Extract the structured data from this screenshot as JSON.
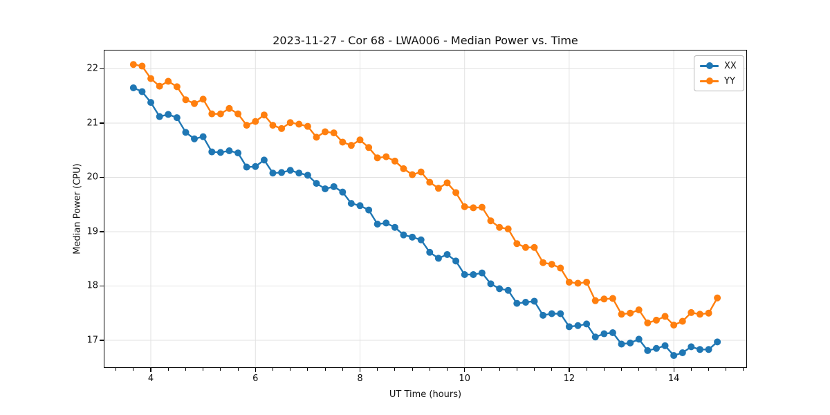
{
  "figure": {
    "title": "2023-11-27 - Cor 68 - LWA006 - Median Power vs. Time",
    "xlabel": "UT Time (hours)",
    "ylabel": "Median Power (CPU)"
  },
  "legend": {
    "position": "upper right",
    "items": [
      {
        "label": "XX",
        "color": "#1f77b4"
      },
      {
        "label": "YY",
        "color": "#ff7f0e"
      }
    ]
  },
  "chart_data": {
    "type": "line",
    "title": "2023-11-27 - Cor 68 - LWA006 - Median Power vs. Time",
    "xlabel": "UT Time (hours)",
    "ylabel": "Median Power (CPU)",
    "xlim": [
      3.1,
      15.4
    ],
    "ylim": [
      16.49,
      22.35
    ],
    "xticks": [
      4,
      6,
      8,
      10,
      12,
      14
    ],
    "yticks": [
      17,
      18,
      19,
      20,
      21,
      22
    ],
    "x_minor_step": 0.3333,
    "grid": true,
    "grid_color": "#e2e2e2",
    "legend_position": "upper right",
    "marker": "circle",
    "x": [
      3.667,
      3.833,
      4.0,
      4.167,
      4.333,
      4.5,
      4.667,
      4.833,
      5.0,
      5.167,
      5.333,
      5.5,
      5.667,
      5.833,
      6.0,
      6.167,
      6.333,
      6.5,
      6.667,
      6.833,
      7.0,
      7.167,
      7.333,
      7.5,
      7.667,
      7.833,
      8.0,
      8.167,
      8.333,
      8.5,
      8.667,
      8.833,
      9.0,
      9.167,
      9.333,
      9.5,
      9.667,
      9.833,
      10.0,
      10.167,
      10.333,
      10.5,
      10.667,
      10.833,
      11.0,
      11.167,
      11.333,
      11.5,
      11.667,
      11.833,
      12.0,
      12.167,
      12.333,
      12.5,
      12.667,
      12.833,
      13.0,
      13.167,
      13.333,
      13.5,
      13.667,
      13.833,
      14.0,
      14.167,
      14.333,
      14.5,
      14.667,
      14.833
    ],
    "series": [
      {
        "name": "XX",
        "color": "#1f77b4",
        "values": [
          21.65,
          21.58,
          21.38,
          21.12,
          21.16,
          21.1,
          20.83,
          20.71,
          20.75,
          20.47,
          20.46,
          20.49,
          20.45,
          20.19,
          20.2,
          20.32,
          20.08,
          20.09,
          20.13,
          20.08,
          20.04,
          19.89,
          19.79,
          19.83,
          19.73,
          19.52,
          19.48,
          19.4,
          19.14,
          19.16,
          19.08,
          18.94,
          18.9,
          18.85,
          18.62,
          18.51,
          18.58,
          18.46,
          18.21,
          18.21,
          18.24,
          18.04,
          17.95,
          17.92,
          17.68,
          17.7,
          17.72,
          17.46,
          17.49,
          17.49,
          17.25,
          17.27,
          17.3,
          17.06,
          17.12,
          17.14,
          16.93,
          16.95,
          17.02,
          16.81,
          16.85,
          16.9,
          16.72,
          16.77,
          16.88,
          16.83,
          16.83,
          16.97
        ]
      },
      {
        "name": "YY",
        "color": "#ff7f0e",
        "values": [
          22.08,
          22.05,
          21.82,
          21.68,
          21.77,
          21.67,
          21.43,
          21.36,
          21.44,
          21.17,
          21.17,
          21.27,
          21.17,
          20.96,
          21.03,
          21.15,
          20.96,
          20.9,
          21.01,
          20.98,
          20.94,
          20.74,
          20.84,
          20.82,
          20.65,
          20.59,
          20.69,
          20.55,
          20.36,
          20.38,
          20.3,
          20.16,
          20.05,
          20.1,
          19.91,
          19.8,
          19.9,
          19.72,
          19.46,
          19.44,
          19.45,
          19.2,
          19.08,
          19.05,
          18.78,
          18.71,
          18.71,
          18.43,
          18.4,
          18.33,
          18.07,
          18.05,
          18.07,
          17.73,
          17.76,
          17.77,
          17.48,
          17.5,
          17.56,
          17.32,
          17.37,
          17.44,
          17.28,
          17.35,
          17.51,
          17.48,
          17.5,
          17.78
        ]
      }
    ]
  }
}
